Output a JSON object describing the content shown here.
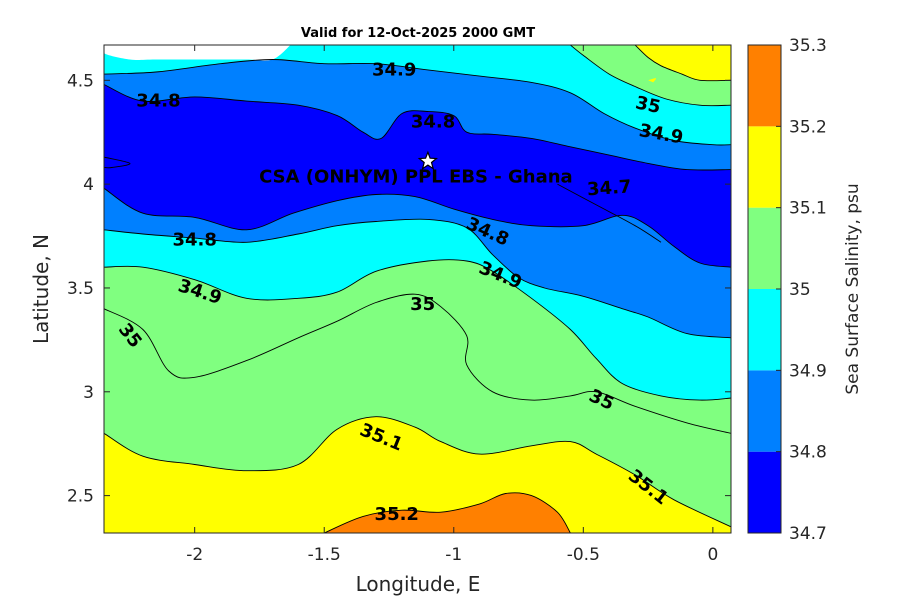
{
  "chart_data": {
    "type": "filled-contour",
    "title": "Valid for 12-Oct-2025 2000 GMT",
    "xlabel": "Longitude, E",
    "ylabel": "Latitude, N",
    "xlim": [
      -2.35,
      0.07
    ],
    "ylim": [
      2.32,
      4.67
    ],
    "x_ticks": [
      -2,
      -1.5,
      -1,
      -0.5,
      0
    ],
    "x_tick_labels": [
      "-2",
      "-1.5",
      "-1",
      "-0.5",
      "0"
    ],
    "y_ticks": [
      2.5,
      3,
      3.5,
      4,
      4.5
    ],
    "y_tick_labels": [
      "2.5",
      "3",
      "3.5",
      "4",
      "4.5"
    ],
    "colorbar": {
      "label": "Sea Surface Salinity, psu",
      "range": [
        34.7,
        35.3
      ],
      "ticks": [
        34.7,
        34.8,
        34.9,
        35,
        35.1,
        35.2,
        35.3
      ],
      "tick_labels": [
        "34.7",
        "34.8",
        "34.9",
        "35",
        "35.1",
        "35.2",
        "35.3"
      ],
      "colors": [
        "#0000ff",
        "#0080ff",
        "#00ffff",
        "#80ff80",
        "#ffff00",
        "#ff8000"
      ]
    },
    "colors": {
      "no_data": "#ffffff",
      "c_34_7": "#0000ff",
      "c_34_8": "#0080ff",
      "c_34_9": "#00ffff",
      "c_35_0": "#80ff80",
      "c_35_1": "#ffff00",
      "c_35_2": "#ff8000"
    },
    "isolines": {
      "i348": [
        [
          -2.35,
          4.48
        ],
        [
          -2.2,
          4.4
        ],
        [
          -2.0,
          4.42
        ],
        [
          -1.8,
          4.4
        ],
        [
          -1.6,
          4.38
        ],
        [
          -1.45,
          4.33
        ],
        [
          -1.35,
          4.25
        ],
        [
          -1.28,
          4.22
        ],
        [
          -1.2,
          4.34
        ],
        [
          -1.1,
          4.35
        ],
        [
          -1.0,
          4.33
        ],
        [
          -0.95,
          4.25
        ],
        [
          -0.85,
          4.24
        ],
        [
          -0.7,
          4.22
        ],
        [
          -0.55,
          4.18
        ],
        [
          -0.4,
          4.14
        ],
        [
          -0.25,
          4.1
        ],
        [
          -0.1,
          4.07
        ],
        [
          0.07,
          4.07
        ]
      ],
      "i349": [
        [
          -2.35,
          4.53
        ],
        [
          -2.15,
          4.54
        ],
        [
          -1.9,
          4.58
        ],
        [
          -1.7,
          4.6
        ],
        [
          -1.5,
          4.58
        ],
        [
          -1.3,
          4.58
        ],
        [
          -1.1,
          4.55
        ],
        [
          -0.9,
          4.52
        ],
        [
          -0.7,
          4.49
        ],
        [
          -0.55,
          4.44
        ],
        [
          -0.42,
          4.34
        ],
        [
          -0.3,
          4.27
        ],
        [
          -0.15,
          4.21
        ],
        [
          0.0,
          4.19
        ],
        [
          0.07,
          4.19
        ]
      ],
      "i35n": [
        [
          -0.55,
          4.67
        ],
        [
          -0.5,
          4.62
        ],
        [
          -0.4,
          4.53
        ],
        [
          -0.3,
          4.47
        ],
        [
          -0.18,
          4.41
        ],
        [
          -0.05,
          4.38
        ],
        [
          0.07,
          4.38
        ]
      ],
      "i351n": [
        [
          -0.3,
          4.67
        ],
        [
          -0.25,
          4.61
        ],
        [
          -0.2,
          4.57
        ],
        [
          -0.12,
          4.53
        ],
        [
          -0.05,
          4.5
        ],
        [
          0.07,
          4.5
        ]
      ],
      "l347": [
        [
          -2.35,
          3.98
        ],
        [
          -2.2,
          3.86
        ],
        [
          -2.0,
          3.84
        ],
        [
          -1.8,
          3.78
        ],
        [
          -1.62,
          3.86
        ],
        [
          -1.45,
          3.92
        ],
        [
          -1.3,
          3.95
        ],
        [
          -1.15,
          3.94
        ],
        [
          -1.0,
          3.88
        ],
        [
          -0.85,
          3.83
        ],
        [
          -0.7,
          3.8
        ],
        [
          -0.5,
          3.8
        ],
        [
          -0.35,
          3.85
        ],
        [
          -0.25,
          3.8
        ],
        [
          -0.15,
          3.7
        ],
        [
          -0.05,
          3.62
        ],
        [
          0.07,
          3.6
        ]
      ],
      "l348": [
        [
          -2.35,
          3.78
        ],
        [
          -2.2,
          3.76
        ],
        [
          -2.0,
          3.74
        ],
        [
          -1.8,
          3.72
        ],
        [
          -1.6,
          3.76
        ],
        [
          -1.45,
          3.8
        ],
        [
          -1.3,
          3.82
        ],
        [
          -1.1,
          3.83
        ],
        [
          -0.95,
          3.79
        ],
        [
          -0.85,
          3.66
        ],
        [
          -0.75,
          3.55
        ],
        [
          -0.65,
          3.5
        ],
        [
          -0.5,
          3.46
        ],
        [
          -0.35,
          3.4
        ],
        [
          -0.25,
          3.36
        ],
        [
          -0.1,
          3.28
        ],
        [
          0.07,
          3.26
        ]
      ],
      "l349": [
        [
          -2.35,
          3.6
        ],
        [
          -2.2,
          3.6
        ],
        [
          -2.0,
          3.54
        ],
        [
          -1.8,
          3.45
        ],
        [
          -1.6,
          3.45
        ],
        [
          -1.45,
          3.48
        ],
        [
          -1.3,
          3.58
        ],
        [
          -1.1,
          3.63
        ],
        [
          -0.95,
          3.63
        ],
        [
          -0.85,
          3.58
        ],
        [
          -0.7,
          3.45
        ],
        [
          -0.55,
          3.3
        ],
        [
          -0.45,
          3.16
        ],
        [
          -0.35,
          3.04
        ],
        [
          -0.2,
          2.98
        ],
        [
          -0.05,
          2.96
        ],
        [
          0.07,
          2.97
        ]
      ],
      "l350": [
        [
          -2.35,
          3.4
        ],
        [
          -2.2,
          3.3
        ],
        [
          -2.1,
          3.1
        ],
        [
          -2.0,
          3.07
        ],
        [
          -1.8,
          3.15
        ],
        [
          -1.6,
          3.26
        ],
        [
          -1.45,
          3.34
        ],
        [
          -1.3,
          3.43
        ],
        [
          -1.15,
          3.47
        ],
        [
          -1.05,
          3.41
        ],
        [
          -0.95,
          3.27
        ],
        [
          -0.95,
          3.13
        ],
        [
          -0.85,
          3.0
        ],
        [
          -0.7,
          2.96
        ],
        [
          -0.55,
          2.98
        ],
        [
          -0.45,
          3.0
        ],
        [
          -0.3,
          2.93
        ],
        [
          -0.1,
          2.85
        ],
        [
          0.07,
          2.8
        ]
      ],
      "l351": [
        [
          -2.35,
          2.8
        ],
        [
          -2.2,
          2.69
        ],
        [
          -2.0,
          2.65
        ],
        [
          -1.8,
          2.62
        ],
        [
          -1.6,
          2.65
        ],
        [
          -1.45,
          2.82
        ],
        [
          -1.3,
          2.88
        ],
        [
          -1.15,
          2.83
        ],
        [
          -1.05,
          2.76
        ],
        [
          -0.9,
          2.7
        ],
        [
          -0.7,
          2.74
        ],
        [
          -0.55,
          2.76
        ],
        [
          -0.45,
          2.7
        ],
        [
          -0.3,
          2.6
        ],
        [
          -0.15,
          2.48
        ],
        [
          0.07,
          2.35
        ]
      ],
      "l352": [
        [
          -1.5,
          2.32
        ],
        [
          -1.35,
          2.4
        ],
        [
          -1.2,
          2.43
        ],
        [
          -1.05,
          2.42
        ],
        [
          -0.9,
          2.46
        ],
        [
          -0.8,
          2.51
        ],
        [
          -0.7,
          2.5
        ],
        [
          -0.6,
          2.42
        ],
        [
          -0.55,
          2.32
        ]
      ],
      "vignette_top_left": [
        [
          -2.35,
          4.67
        ],
        [
          -2.35,
          4.63
        ],
        [
          -2.25,
          4.6
        ],
        [
          -2.15,
          4.6
        ],
        [
          -1.95,
          4.6
        ],
        [
          -1.8,
          4.6
        ],
        [
          -1.7,
          4.6
        ],
        [
          -1.63,
          4.67
        ]
      ],
      "hole_34_7_west": [
        [
          -2.35,
          4.13
        ],
        [
          -2.25,
          4.1
        ],
        [
          -2.32,
          4.08
        ],
        [
          -2.35,
          4.08
        ]
      ],
      "dot_35_1": [
        [
          -0.25,
          4.5
        ],
        [
          -0.22,
          4.51
        ],
        [
          -0.23,
          4.49
        ]
      ],
      "contour_34_7_east": [
        [
          -0.6,
          4.0
        ],
        [
          -0.45,
          3.9
        ],
        [
          -0.3,
          3.8
        ],
        [
          -0.2,
          3.72
        ]
      ]
    },
    "contour_labels": [
      {
        "text": "34.9",
        "x": -1.23,
        "y": 4.55,
        "angle": 0
      },
      {
        "text": "34.8",
        "x": -2.14,
        "y": 4.4,
        "angle": 0
      },
      {
        "text": "34.8",
        "x": -1.08,
        "y": 4.3,
        "angle": 0
      },
      {
        "text": "35",
        "x": -0.25,
        "y": 4.38,
        "angle": 12
      },
      {
        "text": "34.9",
        "x": -0.2,
        "y": 4.24,
        "angle": 10
      },
      {
        "text": "34.7",
        "x": -0.4,
        "y": 3.98,
        "angle": -4
      },
      {
        "text": "34.8",
        "x": -0.87,
        "y": 3.77,
        "angle": 24
      },
      {
        "text": "34.8",
        "x": -2.0,
        "y": 3.73,
        "angle": 0
      },
      {
        "text": "34.9",
        "x": -0.82,
        "y": 3.56,
        "angle": 22
      },
      {
        "text": "34.9",
        "x": -1.98,
        "y": 3.48,
        "angle": 18
      },
      {
        "text": "35",
        "x": -1.12,
        "y": 3.42,
        "angle": 0
      },
      {
        "text": "35",
        "x": -2.25,
        "y": 3.27,
        "angle": 52
      },
      {
        "text": "35",
        "x": -0.43,
        "y": 2.96,
        "angle": 25
      },
      {
        "text": "35.1",
        "x": -1.28,
        "y": 2.78,
        "angle": 22
      },
      {
        "text": "35.1",
        "x": -0.25,
        "y": 2.54,
        "angle": 38
      },
      {
        "text": "35.2",
        "x": -1.22,
        "y": 2.41,
        "angle": 0
      }
    ],
    "site": {
      "label": "CSA (ONHYM) PPL EBS  - Ghana",
      "x": -1.1,
      "y": 4.11,
      "marker": "white-star"
    }
  }
}
